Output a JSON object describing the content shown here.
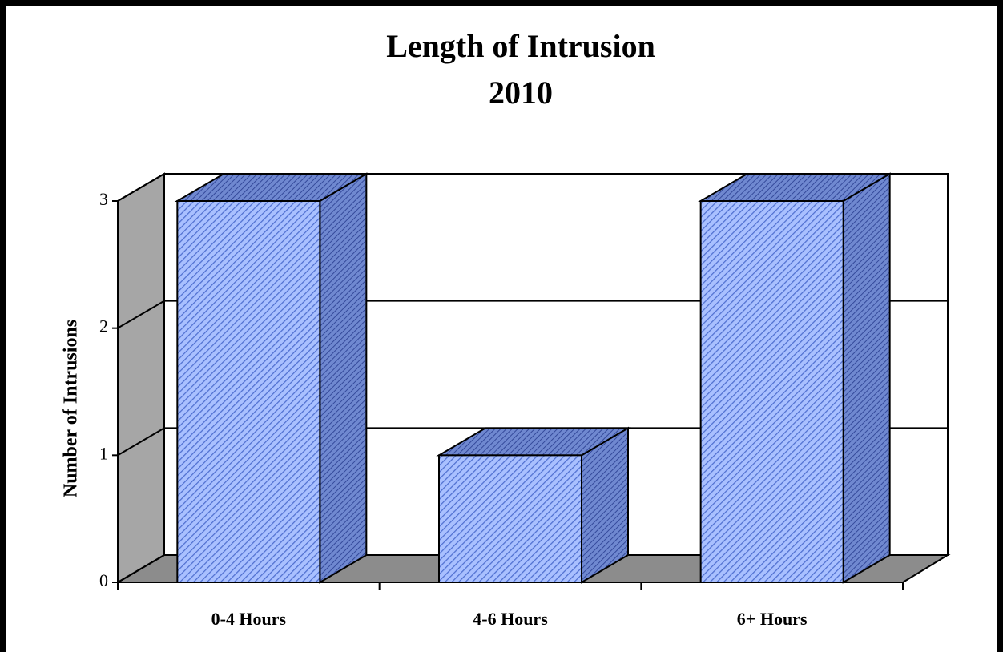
{
  "chart_data": {
    "type": "bar3d",
    "title": "Length of Intrusion",
    "subtitle": "2010",
    "ylabel": "Number of Intrusions",
    "categories": [
      "0-4 Hours",
      "4-6 Hours",
      "6+ Hours"
    ],
    "values": [
      3,
      1,
      3
    ],
    "color": "#8aa6f0",
    "ylim": [
      0,
      3
    ],
    "yticks": [
      0,
      1,
      2,
      3
    ],
    "grid": true
  }
}
